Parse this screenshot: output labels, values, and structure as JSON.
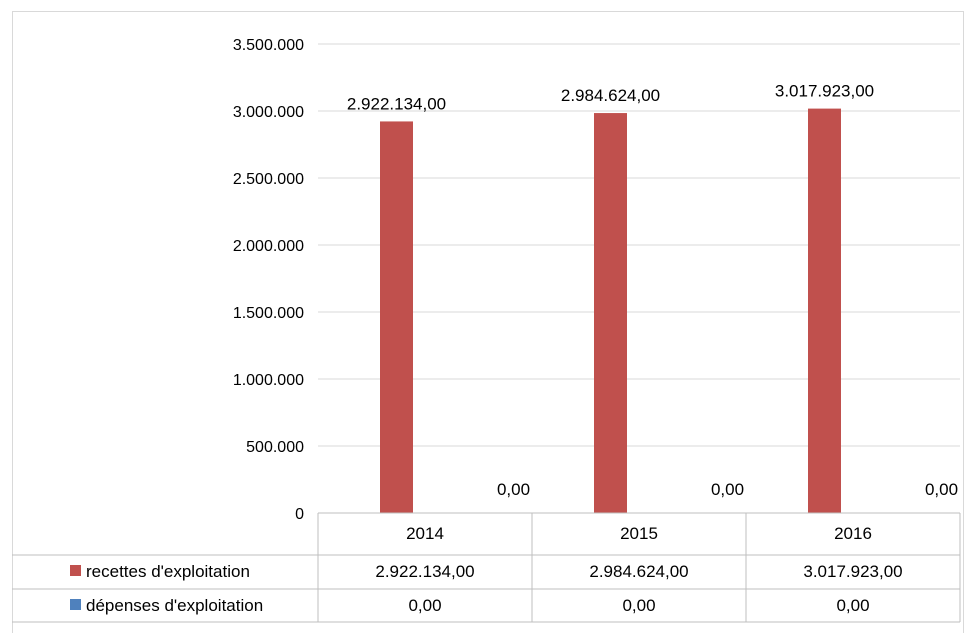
{
  "chart_data": {
    "type": "bar",
    "categories": [
      "2014",
      "2015",
      "2016"
    ],
    "series": [
      {
        "name": "recettes d'exploitation",
        "color": "#c0504d",
        "values": [
          2922134.0,
          2984624.0,
          3017923.0
        ],
        "labels": [
          "2.922.134,00",
          "2.984.624,00",
          "3.017.923,00"
        ]
      },
      {
        "name": "dépenses d'exploitation",
        "color": "#4f81bd",
        "values": [
          0.0,
          0.0,
          0.0
        ],
        "labels": [
          "0,00",
          "0,00",
          "0,00"
        ]
      }
    ],
    "ylim": [
      0,
      3500000
    ],
    "yticks": [
      0,
      500000,
      1000000,
      1500000,
      2000000,
      2500000,
      3000000,
      3500000
    ],
    "ytick_labels": [
      "0",
      "500.000",
      "1.000.000",
      "1.500.000",
      "2.000.000",
      "2.500.000",
      "3.000.000",
      "3.500.000"
    ],
    "grid": true,
    "legend": "data-table",
    "data_table": true
  }
}
